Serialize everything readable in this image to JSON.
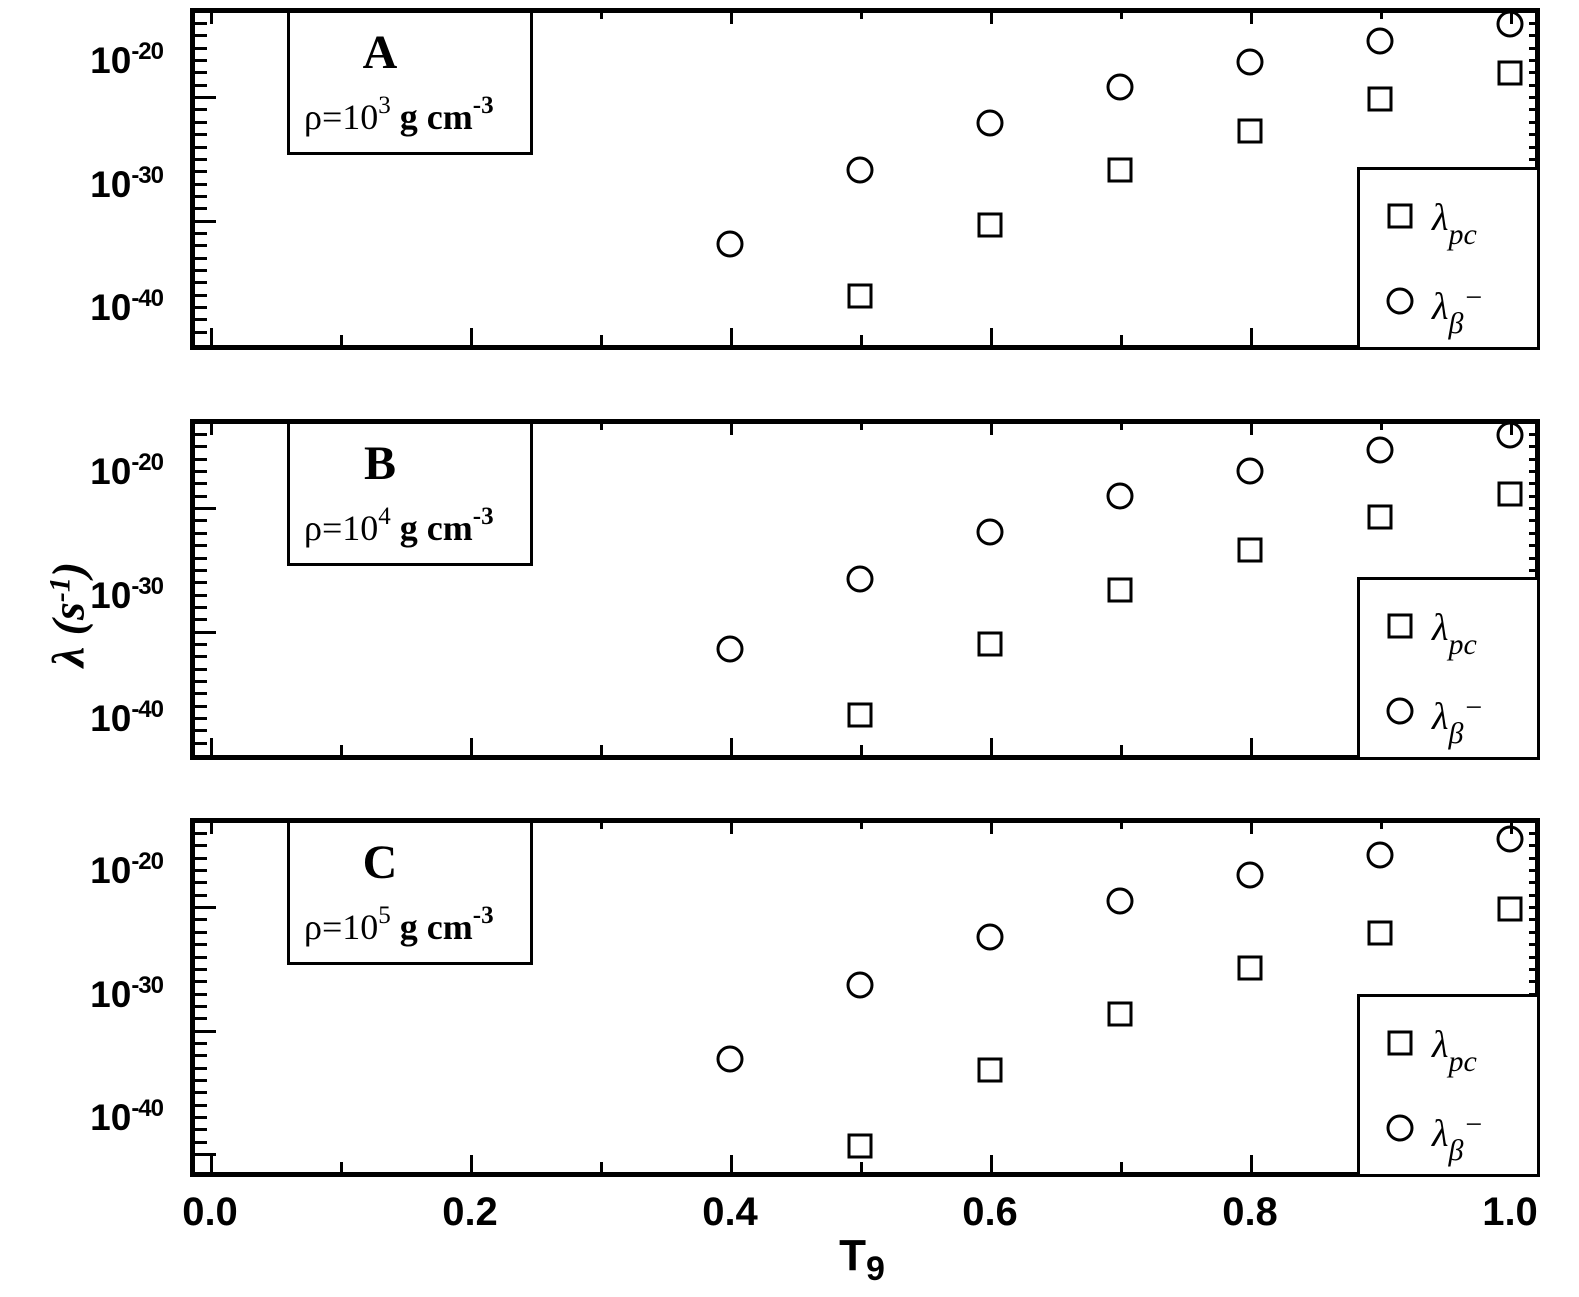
{
  "labels": {
    "x_title_main": "T",
    "x_title_sub": "9",
    "y_title_main": "λ (s",
    "y_title_sup": "-1",
    "y_title_close": ")"
  },
  "y_tick_labels": {
    "base": "10",
    "exponents": [
      "-20",
      "-30",
      "-40"
    ]
  },
  "x_tick_labels": [
    "0.0",
    "0.2",
    "0.4",
    "0.6",
    "0.8",
    "1.0"
  ],
  "legend": {
    "position": "bottom-right-inside",
    "entries": [
      {
        "marker": "square",
        "label_main": "λ",
        "label_sub": "pc",
        "label_sup": ""
      },
      {
        "marker": "circle",
        "label_main": "λ",
        "label_sub": "β",
        "label_sup": "−"
      }
    ]
  },
  "chart_data": [
    {
      "type": "scatter",
      "panel": "A",
      "annotation_letter": "A",
      "annotation_density": {
        "prefix": "ρ=10",
        "exponent": "3",
        "unit": " g cm",
        "unit_exponent": "-3"
      },
      "xlabel": "T9",
      "ylabel": "lambda (s^-1)",
      "y_scale": "log",
      "xlim": [
        -0.015,
        1.02
      ],
      "ylim_log10": [
        -43.5,
        -15.5
      ],
      "x_major_tick_step": 0.2,
      "grid": false,
      "series": [
        {
          "name": "lambda_pc",
          "marker": "square",
          "points": [
            [
              0.5,
              -38.8
            ],
            [
              0.6,
              -33.0
            ],
            [
              0.7,
              -28.6
            ],
            [
              0.8,
              -25.4
            ],
            [
              0.9,
              -22.8
            ],
            [
              1.0,
              -20.7
            ]
          ]
        },
        {
          "name": "lambda_beta_minus",
          "marker": "circle",
          "points": [
            [
              0.4,
              -34.6
            ],
            [
              0.5,
              -28.6
            ],
            [
              0.6,
              -24.8
            ],
            [
              0.7,
              -21.9
            ],
            [
              0.8,
              -19.8
            ],
            [
              0.9,
              -18.1
            ],
            [
              1.0,
              -16.8
            ]
          ]
        }
      ]
    },
    {
      "type": "scatter",
      "panel": "B",
      "annotation_letter": "B",
      "annotation_density": {
        "prefix": "ρ=10",
        "exponent": "4",
        "unit": " g cm",
        "unit_exponent": "-3"
      },
      "xlabel": "T9",
      "ylabel": "lambda (s^-1)",
      "y_scale": "log",
      "xlim": [
        -0.015,
        1.02
      ],
      "ylim_log10": [
        -43.5,
        -15.5
      ],
      "x_major_tick_step": 0.2,
      "grid": false,
      "series": [
        {
          "name": "lambda_pc",
          "marker": "square",
          "points": [
            [
              0.5,
              -39.4
            ],
            [
              0.6,
              -33.7
            ],
            [
              0.7,
              -29.3
            ],
            [
              0.8,
              -26.1
            ],
            [
              0.9,
              -23.4
            ],
            [
              1.0,
              -21.5
            ]
          ]
        },
        {
          "name": "lambda_beta_minus",
          "marker": "circle",
          "points": [
            [
              0.4,
              -34.1
            ],
            [
              0.5,
              -28.4
            ],
            [
              0.6,
              -24.6
            ],
            [
              0.7,
              -21.7
            ],
            [
              0.8,
              -19.7
            ],
            [
              0.9,
              -18.0
            ],
            [
              1.0,
              -16.8
            ]
          ]
        }
      ]
    },
    {
      "type": "scatter",
      "panel": "C",
      "annotation_letter": "C",
      "annotation_density": {
        "prefix": "ρ=10",
        "exponent": "5",
        "unit": " g cm",
        "unit_exponent": "-3"
      },
      "xlabel": "T9",
      "ylabel": "lambda (s^-1)",
      "y_scale": "log",
      "xlim": [
        -0.015,
        1.02
      ],
      "ylim_log10": [
        -44.5,
        -15.5
      ],
      "x_major_tick_step": 0.2,
      "grid": false,
      "series": [
        {
          "name": "lambda_pc",
          "marker": "square",
          "points": [
            [
              0.5,
              -42.0
            ],
            [
              0.6,
              -35.9
            ],
            [
              0.7,
              -31.3
            ],
            [
              0.8,
              -27.6
            ],
            [
              0.9,
              -24.8
            ],
            [
              1.0,
              -22.8
            ]
          ]
        },
        {
          "name": "lambda_beta_minus",
          "marker": "circle",
          "points": [
            [
              0.4,
              -35.0
            ],
            [
              0.5,
              -29.0
            ],
            [
              0.6,
              -25.1
            ],
            [
              0.7,
              -22.2
            ],
            [
              0.8,
              -20.1
            ],
            [
              0.9,
              -18.5
            ],
            [
              1.0,
              -17.2
            ]
          ]
        }
      ]
    }
  ]
}
